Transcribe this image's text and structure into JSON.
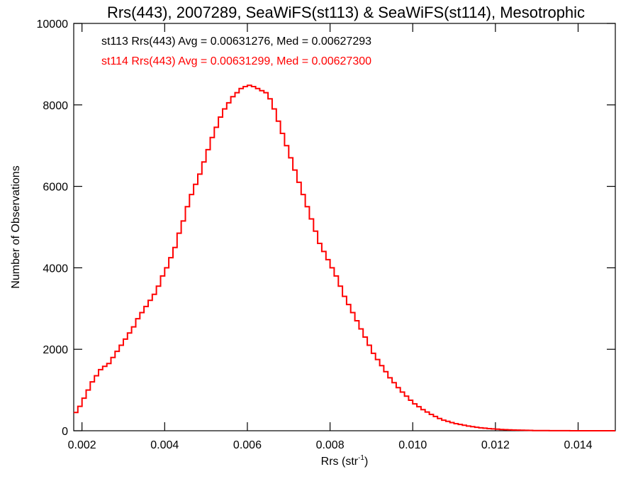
{
  "chart_data": {
    "type": "line",
    "title": "Rrs(443), 2007289, SeaWiFS(st113) & SeaWiFS(st114), Mesotrophic",
    "xlabel_main": "Rrs (str",
    "xlabel_sup": "-1",
    "xlabel_close": ")",
    "ylabel": "Number of Observations",
    "xlim": [
      0.0018,
      0.0149
    ],
    "ylim": [
      0,
      10000
    ],
    "x_ticks": [
      0.002,
      0.004,
      0.006,
      0.008,
      0.01,
      0.012,
      0.014
    ],
    "x_tick_labels": [
      "0.002",
      "0.004",
      "0.006",
      "0.008",
      "0.010",
      "0.012",
      "0.014"
    ],
    "y_ticks": [
      0,
      2000,
      4000,
      6000,
      8000,
      10000
    ],
    "y_tick_labels": [
      "0",
      "2000",
      "4000",
      "6000",
      "8000",
      "10000"
    ],
    "grid": false,
    "colors": {
      "st113": "#000000",
      "st114": "#ff0000",
      "axes": "#000000"
    },
    "annotations": [
      {
        "text": "st113 Rrs(443) Avg = 0.00631276, Med = 0.00627293",
        "color": "#000000"
      },
      {
        "text": "st114 Rrs(443) Avg = 0.00631299, Med = 0.00627300",
        "color": "#ff0000"
      }
    ],
    "series": [
      {
        "label": "st114",
        "step": true,
        "x": [
          0.0018,
          0.0019,
          0.002,
          0.0021,
          0.0022,
          0.0023,
          0.0024,
          0.0025,
          0.0026,
          0.0027,
          0.0028,
          0.0029,
          0.003,
          0.0031,
          0.0032,
          0.0033,
          0.0034,
          0.0035,
          0.0036,
          0.0037,
          0.0038,
          0.0039,
          0.004,
          0.0041,
          0.0042,
          0.0043,
          0.0044,
          0.0045,
          0.0046,
          0.0047,
          0.0048,
          0.0049,
          0.005,
          0.0051,
          0.0052,
          0.0053,
          0.0054,
          0.0055,
          0.0056,
          0.0057,
          0.0058,
          0.0059,
          0.006,
          0.0061,
          0.0062,
          0.0063,
          0.0064,
          0.0065,
          0.0066,
          0.0067,
          0.0068,
          0.0069,
          0.007,
          0.0071,
          0.0072,
          0.0073,
          0.0074,
          0.0075,
          0.0076,
          0.0077,
          0.0078,
          0.0079,
          0.008,
          0.0081,
          0.0082,
          0.0083,
          0.0084,
          0.0085,
          0.0086,
          0.0087,
          0.0088,
          0.0089,
          0.009,
          0.0091,
          0.0092,
          0.0093,
          0.0094,
          0.0095,
          0.0096,
          0.0097,
          0.0098,
          0.0099,
          0.01,
          0.0101,
          0.0102,
          0.0103,
          0.0104,
          0.0105,
          0.0106,
          0.0107,
          0.0108,
          0.0109,
          0.011,
          0.0111,
          0.0112,
          0.0113,
          0.0114,
          0.0115,
          0.0116,
          0.0117,
          0.0118,
          0.0119,
          0.012,
          0.0121,
          0.0122,
          0.0123,
          0.0124,
          0.0125,
          0.0126,
          0.0127,
          0.0128,
          0.0129,
          0.013,
          0.0131,
          0.0132,
          0.0133,
          0.0134,
          0.0135,
          0.0136,
          0.0137,
          0.0138,
          0.0139,
          0.014,
          0.0141,
          0.0142,
          0.0143,
          0.0144,
          0.0145,
          0.0146,
          0.0147,
          0.0148,
          0.0149
        ],
        "values": [
          450,
          600,
          800,
          1000,
          1200,
          1350,
          1500,
          1580,
          1650,
          1800,
          1950,
          2100,
          2250,
          2400,
          2550,
          2750,
          2900,
          3050,
          3200,
          3350,
          3550,
          3800,
          4000,
          4250,
          4500,
          4850,
          5150,
          5500,
          5800,
          6050,
          6300,
          6600,
          6900,
          7200,
          7450,
          7700,
          7900,
          8050,
          8200,
          8300,
          8400,
          8450,
          8480,
          8450,
          8400,
          8350,
          8300,
          8150,
          7900,
          7600,
          7300,
          7000,
          6700,
          6400,
          6100,
          5800,
          5500,
          5200,
          4900,
          4600,
          4400,
          4200,
          4000,
          3800,
          3550,
          3300,
          3100,
          2900,
          2700,
          2500,
          2300,
          2100,
          1900,
          1750,
          1600,
          1450,
          1300,
          1180,
          1060,
          950,
          850,
          750,
          660,
          590,
          520,
          460,
          400,
          350,
          300,
          260,
          230,
          200,
          175,
          155,
          135,
          115,
          100,
          85,
          72,
          62,
          52,
          45,
          38,
          32,
          27,
          22,
          18,
          15,
          12,
          10,
          8,
          6,
          5,
          4,
          3,
          2,
          2,
          1,
          1,
          1,
          0,
          0,
          0,
          0,
          0,
          0,
          0,
          0,
          0,
          0,
          0,
          0
        ]
      }
    ]
  }
}
